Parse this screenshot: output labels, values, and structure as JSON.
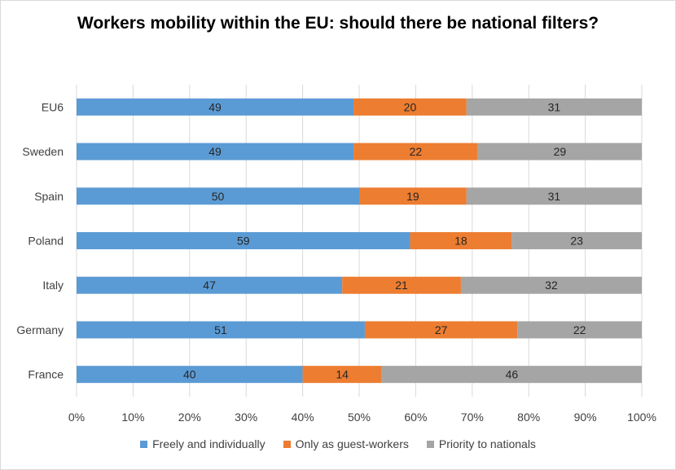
{
  "chart_data": {
    "type": "bar",
    "orientation": "horizontal",
    "stacked": true,
    "title": "Workers mobility within the EU: should there be national filters?",
    "xlabel": "",
    "ylabel": "",
    "xlim": [
      0,
      100
    ],
    "x_ticks": [
      "0%",
      "10%",
      "20%",
      "30%",
      "40%",
      "50%",
      "60%",
      "70%",
      "80%",
      "90%",
      "100%"
    ],
    "grid": true,
    "legend_position": "bottom",
    "categories": [
      "EU6",
      "Sweden",
      "Spain",
      "Poland",
      "Italy",
      "Germany",
      "France"
    ],
    "series": [
      {
        "name": "Freely and individually",
        "color": "#5b9bd5",
        "values": [
          49,
          49,
          50,
          59,
          47,
          51,
          40
        ]
      },
      {
        "name": "Only as guest-workers",
        "color": "#ed7d31",
        "values": [
          20,
          22,
          19,
          18,
          21,
          27,
          14
        ]
      },
      {
        "name": "Priority to nationals",
        "color": "#a5a5a5",
        "values": [
          31,
          29,
          31,
          23,
          32,
          22,
          46
        ]
      }
    ]
  }
}
